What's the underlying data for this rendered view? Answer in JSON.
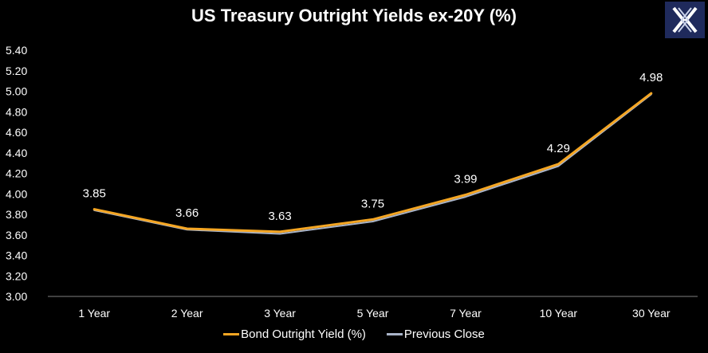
{
  "colors": {
    "background": "#000000",
    "text": "#ffffff",
    "series_primary": "#f5a623",
    "series_previous": "#a9b4c8",
    "logo_bg": "#1f2a5c"
  },
  "logo": {
    "icon": "x-logo-icon"
  },
  "chart_data": {
    "type": "line",
    "title": "US Treasury Outright Yields ex-20Y (%)",
    "xlabel": "",
    "ylabel": "",
    "ylim": [
      3.0,
      5.4
    ],
    "yticks": [
      "3.00",
      "3.20",
      "3.40",
      "3.60",
      "3.80",
      "4.00",
      "4.20",
      "4.40",
      "4.60",
      "4.80",
      "5.00",
      "5.20",
      "5.40"
    ],
    "categories": [
      "1 Year",
      "2 Year",
      "3 Year",
      "5 Year",
      "7 Year",
      "10 Year",
      "30 Year"
    ],
    "grid": false,
    "legend_position": "bottom",
    "series": [
      {
        "name": "Bond Outright Yield (%)",
        "color": "#f5a623",
        "values": [
          3.85,
          3.66,
          3.63,
          3.75,
          3.99,
          4.29,
          4.98
        ],
        "data_labels": [
          "3.85",
          "3.66",
          "3.63",
          "3.75",
          "3.99",
          "4.29",
          "4.98"
        ]
      },
      {
        "name": "Previous Close",
        "color": "#a9b4c8",
        "values": [
          3.84,
          3.65,
          3.61,
          3.73,
          3.97,
          4.27,
          4.97
        ]
      }
    ]
  }
}
